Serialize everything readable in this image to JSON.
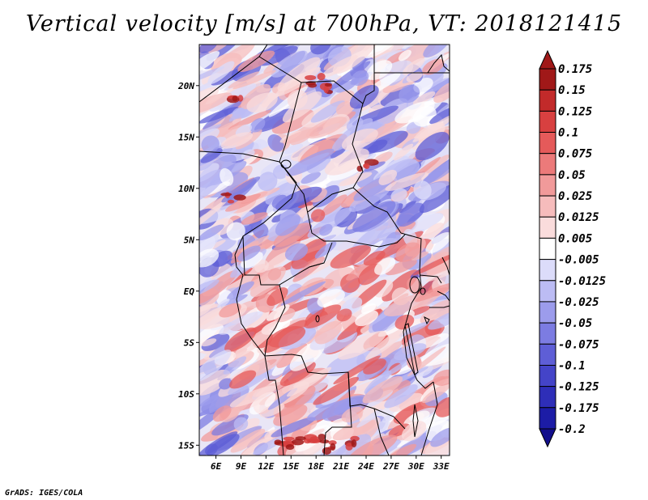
{
  "title": "Vertical velocity [m/s] at 700hPa, VT: 2018121415",
  "map": {
    "lon_labels": [
      "6E",
      "9E",
      "12E",
      "15E",
      "18E",
      "21E",
      "24E",
      "27E",
      "30E",
      "33E"
    ],
    "lat_labels": [
      "20N",
      "15N",
      "10N",
      "5N",
      "EQ",
      "5S",
      "10S",
      "15S"
    ],
    "lon_range": [
      4,
      34
    ],
    "lat_range": [
      -16,
      24
    ]
  },
  "colorbar": {
    "labels": [
      "0.175",
      "0.15",
      "0.125",
      "0.1",
      "0.075",
      "0.05",
      "0.025",
      "0.0125",
      "0.005",
      "-0.005",
      "-0.0125",
      "-0.025",
      "-0.05",
      "-0.075",
      "-0.1",
      "-0.125",
      "-0.175",
      "-0.2"
    ],
    "colors": [
      "#a01818",
      "#c22a2a",
      "#d84040",
      "#e55a5a",
      "#ec7a7a",
      "#f19a9a",
      "#f6bcbc",
      "#fadcdc",
      "#ffffff",
      "#dcdcfa",
      "#bcbcf4",
      "#9c9cec",
      "#7c7ce2",
      "#5e5ed6",
      "#4444c8",
      "#2e2eb8",
      "#1c1ca6",
      "#120e8c"
    ]
  },
  "credit": "GrADS: IGES/COLA"
}
